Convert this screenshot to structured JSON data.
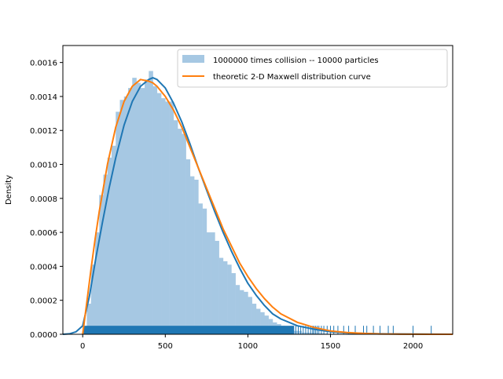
{
  "chart_data": {
    "type": "bar",
    "ylabel": "Density",
    "xlabel": "",
    "xlim": [
      -120,
      2240
    ],
    "ylim": [
      0,
      0.0017
    ],
    "x_ticks": [
      0,
      500,
      1000,
      1500,
      2000
    ],
    "x_tick_labels": [
      "0",
      "500",
      "1000",
      "1500",
      "2000"
    ],
    "y_ticks": [
      0,
      0.0002,
      0.0004,
      0.0006,
      0.0008,
      0.001,
      0.0012,
      0.0014,
      0.0016
    ],
    "y_tick_labels": [
      "0.0000",
      "0.0002",
      "0.0004",
      "0.0006",
      "0.0008",
      "0.0010",
      "0.0012",
      "0.0014",
      "0.0016"
    ],
    "legend": {
      "placement": "upper right",
      "entries": [
        {
          "label": "1000000 times collision -- 10000 particles",
          "color": "#a6c8e3",
          "kind": "patch"
        },
        {
          "label": "theoretic 2-D Maxwell distribution curve",
          "color": "#ff7f0e",
          "kind": "line"
        }
      ]
    },
    "histogram": {
      "name": "1000000 times collision -- 10000 particles",
      "color": "#a6c8e3",
      "bin_width": 25,
      "bin_starts": [
        0,
        25,
        50,
        75,
        100,
        125,
        150,
        175,
        200,
        225,
        250,
        275,
        300,
        325,
        350,
        375,
        400,
        425,
        450,
        475,
        500,
        525,
        550,
        575,
        600,
        625,
        650,
        675,
        700,
        725,
        750,
        775,
        800,
        825,
        850,
        875,
        900,
        925,
        950,
        975,
        1000,
        1025,
        1050,
        1075,
        1100,
        1125,
        1150,
        1175,
        1200,
        1225,
        1250,
        1275,
        1300,
        1325,
        1350,
        1375,
        1400,
        1425,
        1450,
        1475,
        1500,
        1525
      ],
      "values": [
        3e-05,
        0.00018,
        0.00041,
        0.0006,
        0.00082,
        0.00094,
        0.00104,
        0.00111,
        0.00131,
        0.00138,
        0.0014,
        0.00145,
        0.00151,
        0.00148,
        0.00145,
        0.0015,
        0.00155,
        0.00146,
        0.00142,
        0.00139,
        0.00137,
        0.00137,
        0.00126,
        0.00121,
        0.00118,
        0.00103,
        0.00093,
        0.00091,
        0.00077,
        0.00074,
        0.0006,
        0.0006,
        0.00055,
        0.00045,
        0.00043,
        0.00041,
        0.00036,
        0.00029,
        0.00026,
        0.00025,
        0.00022,
        0.00018,
        0.00015,
        0.00013,
        0.00011,
        9e-05,
        7e-05,
        6e-05,
        5e-05,
        4e-05,
        3e-05,
        2e-05,
        2e-05,
        1e-05,
        1e-05,
        8e-06,
        6e-06,
        5e-06,
        4e-06,
        3e-06,
        2e-06,
        1e-06
      ]
    },
    "kde_curve": {
      "color": "#1f77b4",
      "x": [
        -120,
        -80,
        -40,
        0,
        40,
        80,
        120,
        160,
        200,
        250,
        300,
        350,
        400,
        425,
        450,
        500,
        550,
        600,
        650,
        700,
        750,
        800,
        850,
        900,
        950,
        1000,
        1050,
        1100,
        1150,
        1200,
        1300,
        1400,
        1500,
        1600,
        1700,
        1800,
        1900,
        2000,
        2100,
        2240
      ],
      "y": [
        0.0,
        3e-06,
        1.5e-05,
        5e-05,
        0.00022,
        0.00045,
        0.00066,
        0.00086,
        0.00104,
        0.00123,
        0.00137,
        0.00146,
        0.0015,
        0.00151,
        0.0015,
        0.00145,
        0.00136,
        0.00125,
        0.00112,
        0.00098,
        0.00085,
        0.00072,
        0.0006,
        0.00049,
        0.00039,
        0.0003,
        0.00023,
        0.00017,
        0.00012,
        9e-05,
        5e-05,
        3e-05,
        1.5e-05,
        8e-06,
        5e-06,
        3e-06,
        2e-06,
        1e-06,
        5e-07,
        0.0
      ]
    },
    "theoretic_curve": {
      "name": "theoretic 2-D Maxwell distribution curve",
      "color": "#ff7f0e",
      "x": [
        0,
        25,
        50,
        75,
        100,
        150,
        200,
        250,
        300,
        350,
        400,
        425,
        450,
        500,
        550,
        600,
        650,
        700,
        750,
        800,
        850,
        900,
        950,
        1000,
        1050,
        1100,
        1150,
        1200,
        1300,
        1400,
        1500,
        1600,
        1700,
        1800,
        1900,
        2000,
        2100,
        2240
      ],
      "y": [
        0.0,
        0.00019,
        0.00038,
        0.00056,
        0.00072,
        0.001,
        0.00122,
        0.00137,
        0.00146,
        0.0015,
        0.00149,
        0.00148,
        0.00146,
        0.0014,
        0.00132,
        0.00122,
        0.0011,
        0.00098,
        0.00086,
        0.00074,
        0.00062,
        0.00052,
        0.00042,
        0.00034,
        0.00027,
        0.00021,
        0.00016,
        0.00012,
        7e-05,
        4e-05,
        2e-05,
        1e-05,
        5e-06,
        2e-06,
        1e-06,
        5e-07,
        2e-07,
        0.0
      ]
    },
    "rug": {
      "color": "#1f77b4",
      "dense_range": [
        5,
        1280
      ],
      "sparse_points": [
        1290,
        1305,
        1320,
        1335,
        1350,
        1365,
        1380,
        1392,
        1400,
        1410,
        1420,
        1430,
        1445,
        1460,
        1480,
        1500,
        1520,
        1545,
        1580,
        1610,
        1650,
        1700,
        1720,
        1760,
        1800,
        1850,
        1880,
        2000,
        2110
      ],
      "height": 5e-05
    },
    "grid": false
  }
}
